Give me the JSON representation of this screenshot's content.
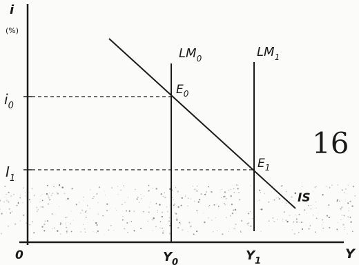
{
  "axes": {
    "y_axis_label": "i",
    "y_axis_unit": "(%)",
    "x_axis_label": "Y",
    "origin_label": "0"
  },
  "interest_levels": {
    "i0": "i",
    "i0_sub": "0",
    "i1": "I",
    "i1_sub": "1"
  },
  "output_levels": {
    "y0": "Y",
    "y0_sub": "0",
    "y1": "Y",
    "y1_sub": "1"
  },
  "curves": {
    "is_label": "IS",
    "lm0_label": "LM",
    "lm0_sub": "0",
    "lm1_label": "LM",
    "lm1_sub": "1"
  },
  "equilibria": {
    "e0": "E",
    "e0_sub": "0",
    "e1": "E",
    "e1_sub": "1"
  },
  "page_number": "16",
  "colors": {
    "ink": "#1a1a1a",
    "paper": "#fbfbfa"
  }
}
